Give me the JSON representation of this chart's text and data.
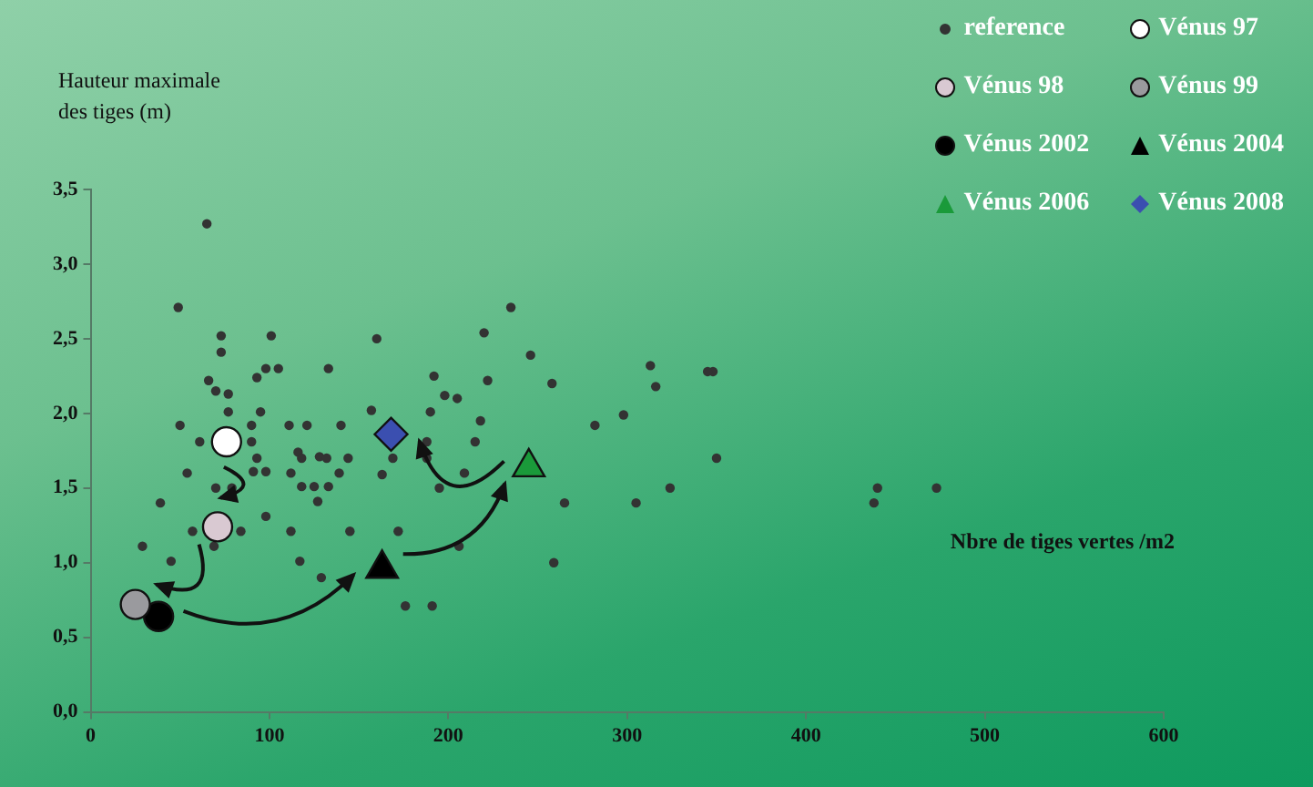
{
  "chart_data": {
    "type": "scatter",
    "xlabel": "Nbre de tiges vertes /m2",
    "ylabel": "Hauteur maximale des tiges (m)",
    "xlim": [
      0,
      600
    ],
    "xticks": [
      0,
      100,
      200,
      300,
      400,
      500,
      600
    ],
    "ylim": [
      0,
      3.5
    ],
    "yticks": [
      {
        "value": 0,
        "label": "0,0"
      },
      {
        "value": 0.5,
        "label": "0,5"
      },
      {
        "value": 1,
        "label": "1,0"
      },
      {
        "value": 1.5,
        "label": "1,5"
      },
      {
        "value": 2,
        "label": "2,0"
      },
      {
        "value": 2.5,
        "label": "2,5"
      },
      {
        "value": 3,
        "label": "3,0"
      },
      {
        "value": 3.5,
        "label": "3,5"
      }
    ],
    "grid": false,
    "legend": "top right",
    "series": [
      {
        "name": "reference",
        "color": "#333333",
        "marker": "circle",
        "x": [
          65,
          49,
          73,
          73,
          101,
          98,
          105,
          93,
          133,
          160,
          66,
          70,
          77,
          77,
          95,
          50,
          61,
          90,
          90,
          111,
          121,
          140,
          157,
          54,
          70,
          79,
          91,
          98,
          93,
          116,
          118,
          128,
          132,
          144,
          139,
          112,
          118,
          125,
          133,
          127,
          163,
          169,
          39,
          57,
          84,
          98,
          112,
          145,
          172,
          29,
          69,
          45,
          117,
          129,
          176,
          191,
          235,
          220,
          246,
          192,
          222,
          258,
          198,
          205,
          313,
          316,
          190,
          218,
          282,
          298,
          188,
          215,
          188,
          209,
          195,
          265,
          305,
          324,
          206,
          259,
          348,
          345,
          350,
          440,
          438,
          473
        ],
        "values": [
          3.27,
          2.71,
          2.52,
          2.41,
          2.52,
          2.3,
          2.3,
          2.24,
          2.3,
          2.5,
          2.22,
          2.15,
          2.13,
          2.01,
          2.01,
          1.92,
          1.81,
          1.92,
          1.81,
          1.92,
          1.92,
          1.92,
          2.02,
          1.6,
          1.5,
          1.5,
          1.61,
          1.61,
          1.7,
          1.74,
          1.7,
          1.71,
          1.7,
          1.7,
          1.6,
          1.6,
          1.51,
          1.51,
          1.51,
          1.41,
          1.59,
          1.7,
          1.4,
          1.21,
          1.21,
          1.31,
          1.21,
          1.21,
          1.21,
          1.11,
          1.11,
          1.01,
          1.01,
          0.9,
          0.71,
          0.71,
          2.71,
          2.54,
          2.39,
          2.25,
          2.22,
          2.2,
          2.12,
          2.1,
          2.32,
          2.18,
          2.01,
          1.95,
          1.92,
          1.99,
          1.81,
          1.81,
          1.7,
          1.6,
          1.5,
          1.4,
          1.4,
          1.5,
          1.11,
          1.0,
          2.28,
          2.28,
          1.7,
          1.5,
          1.4,
          1.5
        ]
      },
      {
        "name": "Vénus 97",
        "color": "#ffffff",
        "marker": "circle",
        "x": [
          76
        ],
        "values": [
          1.81
        ]
      },
      {
        "name": "Vénus 98",
        "color": "#d9c9d2",
        "marker": "circle",
        "x": [
          71
        ],
        "values": [
          1.24
        ]
      },
      {
        "name": "Vénus 99",
        "color": "#9a9a9e",
        "marker": "circle",
        "x": [
          25
        ],
        "values": [
          0.72
        ]
      },
      {
        "name": "Vénus 2002",
        "color": "#000000",
        "marker": "circle",
        "x": [
          38
        ],
        "values": [
          0.64
        ]
      },
      {
        "name": "Vénus 2004",
        "color": "#000000",
        "marker": "triangle",
        "x": [
          163
        ],
        "values": [
          0.96
        ]
      },
      {
        "name": "Vénus 2006",
        "color": "#1a9a3a",
        "marker": "triangle",
        "x": [
          245
        ],
        "values": [
          1.64
        ]
      },
      {
        "name": "Vénus 2008",
        "color": "#3b4fb0",
        "marker": "diamond",
        "x": [
          168
        ],
        "values": [
          1.86
        ]
      }
    ]
  }
}
